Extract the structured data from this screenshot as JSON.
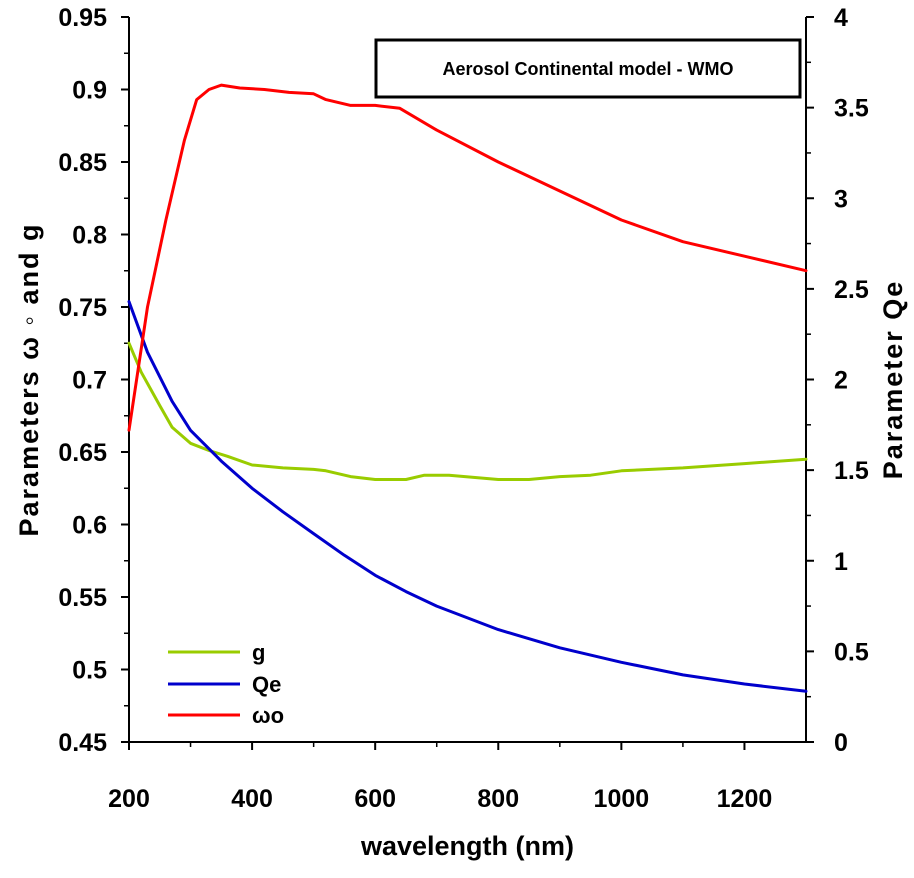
{
  "chart_data": {
    "type": "line",
    "title": "Aerosol Continental model - WMO",
    "xlabel": "wavelength (nm)",
    "ylabel_left": "Parameters  ω ◦ and  g",
    "ylabel_right": "Parameter Qe",
    "xlim": [
      200,
      1300
    ],
    "ylim_left": [
      0.45,
      0.95
    ],
    "ylim_right": [
      0,
      4
    ],
    "x_ticks": [
      "200",
      "400",
      "600",
      "800",
      "1000",
      "1200"
    ],
    "x_tick_values": [
      200,
      400,
      600,
      800,
      1000,
      1200
    ],
    "y_left_ticks": [
      "0.45",
      "0.5",
      "0.55",
      "0.6",
      "0.65",
      "0.7",
      "0.75",
      "0.8",
      "0.85",
      "0.9",
      "0.95"
    ],
    "y_left_tick_values": [
      0.45,
      0.5,
      0.55,
      0.6,
      0.65,
      0.7,
      0.75,
      0.8,
      0.85,
      0.9,
      0.95
    ],
    "y_right_ticks": [
      "0",
      "0.5",
      "1",
      "1.5",
      "2",
      "2.5",
      "3",
      "3.5",
      "4"
    ],
    "y_right_tick_values": [
      0,
      0.5,
      1,
      1.5,
      2,
      2.5,
      3,
      3.5,
      4
    ],
    "grid": false,
    "legend_position": "lower-left",
    "series": [
      {
        "name": "g",
        "axis": "left",
        "color": "#99cc00",
        "x": [
          200,
          220,
          250,
          270,
          300,
          330,
          360,
          400,
          450,
          500,
          520,
          560,
          600,
          650,
          680,
          720,
          800,
          850,
          900,
          950,
          1000,
          1100,
          1200,
          1300
        ],
        "y": [
          0.725,
          0.705,
          0.682,
          0.667,
          0.656,
          0.651,
          0.647,
          0.641,
          0.639,
          0.638,
          0.637,
          0.633,
          0.631,
          0.631,
          0.634,
          0.634,
          0.631,
          0.631,
          0.633,
          0.634,
          0.637,
          0.639,
          0.642,
          0.645
        ]
      },
      {
        "name": "Qe",
        "axis": "right",
        "color": "#0000cc",
        "x": [
          200,
          230,
          270,
          300,
          350,
          400,
          450,
          500,
          550,
          600,
          650,
          700,
          800,
          900,
          1000,
          1100,
          1200,
          1300
        ],
        "y": [
          2.43,
          2.15,
          1.88,
          1.72,
          1.55,
          1.4,
          1.27,
          1.15,
          1.03,
          0.92,
          0.83,
          0.75,
          0.62,
          0.52,
          0.44,
          0.37,
          0.32,
          0.28
        ]
      },
      {
        "name": "ωo",
        "axis": "left",
        "color": "#ff0000",
        "x": [
          200,
          230,
          260,
          290,
          310,
          330,
          350,
          380,
          420,
          460,
          500,
          520,
          560,
          600,
          640,
          700,
          800,
          900,
          1000,
          1100,
          1200,
          1300
        ],
        "y": [
          0.665,
          0.75,
          0.81,
          0.865,
          0.893,
          0.9,
          0.903,
          0.901,
          0.9,
          0.898,
          0.897,
          0.893,
          0.889,
          0.889,
          0.887,
          0.872,
          0.85,
          0.83,
          0.81,
          0.795,
          0.785,
          0.775
        ]
      }
    ]
  }
}
